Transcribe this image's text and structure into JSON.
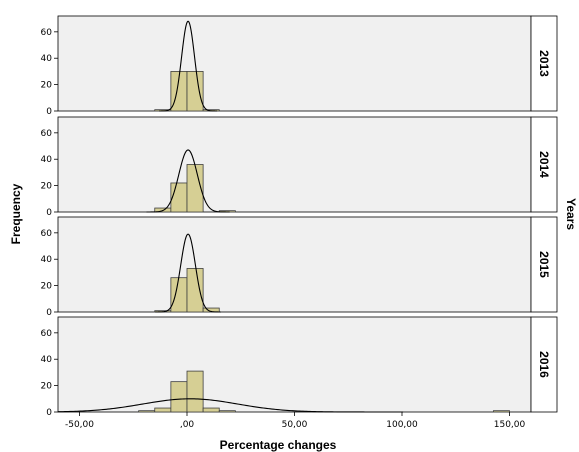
{
  "chart_data": {
    "type": "bar",
    "subtype": "histogram-panels-with-normal-curve",
    "xlabel": "Percentage changes",
    "ylabel": "Frequency",
    "panel_axis_label": "Years",
    "xlim": [
      -60,
      160
    ],
    "ylim": [
      0,
      72
    ],
    "x_ticks": [
      -50,
      0,
      50,
      100,
      150
    ],
    "x_tick_labels": [
      "-50,00",
      ",00",
      "50,00",
      "100,00",
      "150,00"
    ],
    "y_ticks": [
      0,
      20,
      40,
      60
    ],
    "y_tick_labels": [
      "0",
      "20",
      "40",
      "60"
    ],
    "bin_width": 7.5,
    "colors": {
      "bar_fill": "#d6cf94",
      "bar_stroke": "#3f3f3f",
      "panel_bg": "#f0f0f0",
      "curve": "#000000"
    },
    "panels": [
      {
        "year": "2013",
        "bins": [
          {
            "start": -15,
            "count": 1
          },
          {
            "start": -7.5,
            "count": 30
          },
          {
            "start": 0,
            "count": 30
          },
          {
            "start": 7.5,
            "count": 1
          }
        ],
        "curve": {
          "mean": 0.5,
          "sd": 3.0,
          "peak": 68
        }
      },
      {
        "year": "2014",
        "bins": [
          {
            "start": -15,
            "count": 3
          },
          {
            "start": -7.5,
            "count": 22
          },
          {
            "start": 0,
            "count": 36
          },
          {
            "start": 15,
            "count": 1
          }
        ],
        "curve": {
          "mean": 0.5,
          "sd": 4.3,
          "peak": 47
        }
      },
      {
        "year": "2015",
        "bins": [
          {
            "start": -15,
            "count": 1
          },
          {
            "start": -7.5,
            "count": 26
          },
          {
            "start": 0,
            "count": 33
          },
          {
            "start": 7.5,
            "count": 3
          }
        ],
        "curve": {
          "mean": 0.5,
          "sd": 3.4,
          "peak": 59
        }
      },
      {
        "year": "2016",
        "bins": [
          {
            "start": -22.5,
            "count": 1
          },
          {
            "start": -15,
            "count": 3
          },
          {
            "start": -7.5,
            "count": 23
          },
          {
            "start": 0,
            "count": 31
          },
          {
            "start": 7.5,
            "count": 3
          },
          {
            "start": 15,
            "count": 1
          },
          {
            "start": 142.5,
            "count": 1
          }
        ],
        "curve": {
          "mean": 1.5,
          "sd": 22,
          "peak": 10
        }
      }
    ]
  }
}
